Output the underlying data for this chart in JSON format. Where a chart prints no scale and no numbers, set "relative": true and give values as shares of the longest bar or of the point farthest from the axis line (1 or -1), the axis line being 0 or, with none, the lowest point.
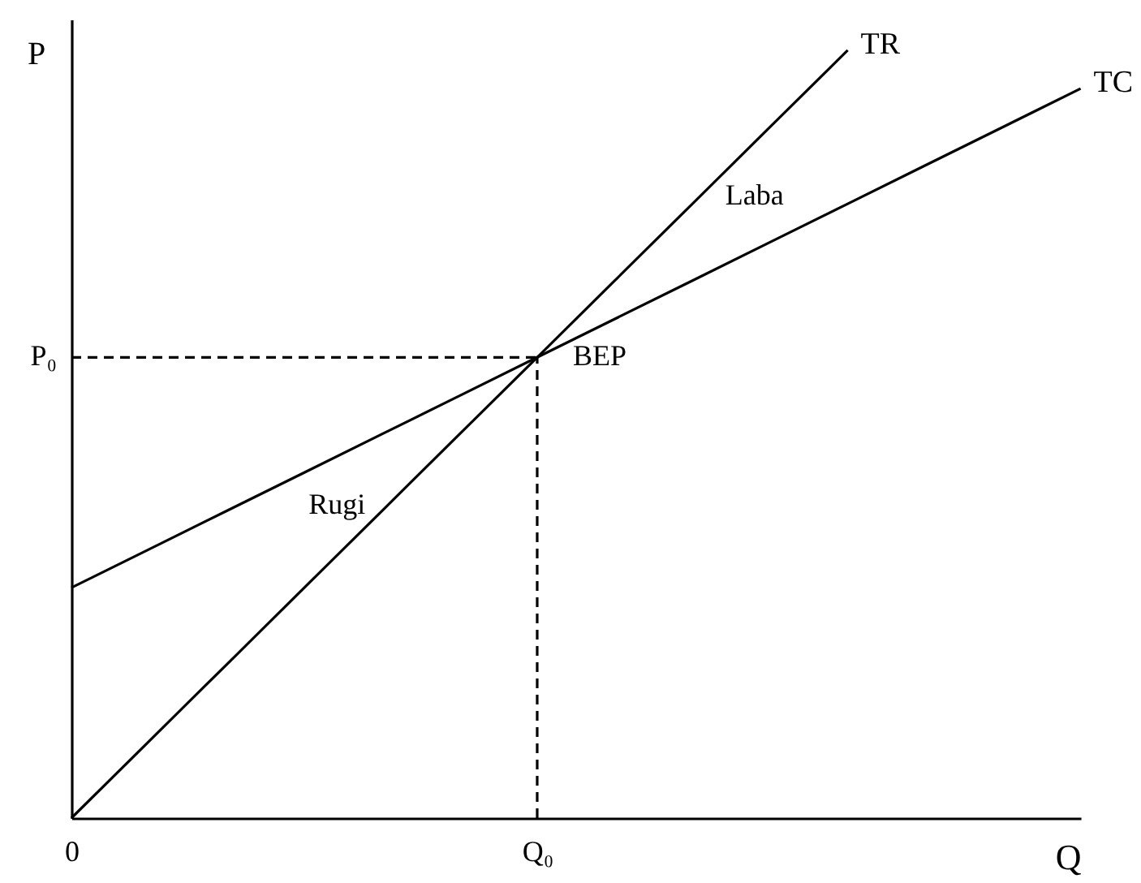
{
  "chart_data": {
    "type": "line",
    "relative": true,
    "xlabel": "Q",
    "ylabel": "P",
    "categories": [
      "0",
      null,
      null,
      null,
      null,
      null,
      "Q₀",
      null,
      null,
      null,
      null,
      null,
      null,
      null
    ],
    "grid": false,
    "marker": "none",
    "series": [
      {
        "name": "TR",
        "color": "#000000",
        "line_style": "solid",
        "values": [
          0,
          0.1,
          0.2,
          0.3,
          0.4,
          0.5,
          0.6,
          0.7,
          0.8,
          0.9,
          1.0,
          null,
          null,
          null
        ]
      },
      {
        "name": "TC",
        "color": "#000000",
        "line_style": "solid",
        "values": [
          0.3,
          0.35,
          0.4,
          0.45,
          0.5,
          0.55,
          0.6,
          0.65,
          0.7,
          0.75,
          0.8,
          0.85,
          0.9,
          0.95
        ]
      }
    ],
    "ref_lines": [
      {
        "axis": "y",
        "value": 0.6,
        "label": "P₀",
        "line_style": "dashed",
        "color": "#000000"
      },
      {
        "axis": "x",
        "value": "Q₀",
        "line_style": "dashed",
        "color": "#000000"
      }
    ],
    "annotations": [
      {
        "text": "BEP",
        "x": "Q₀",
        "y": 0.6
      },
      "Laba",
      "Rugi"
    ]
  }
}
